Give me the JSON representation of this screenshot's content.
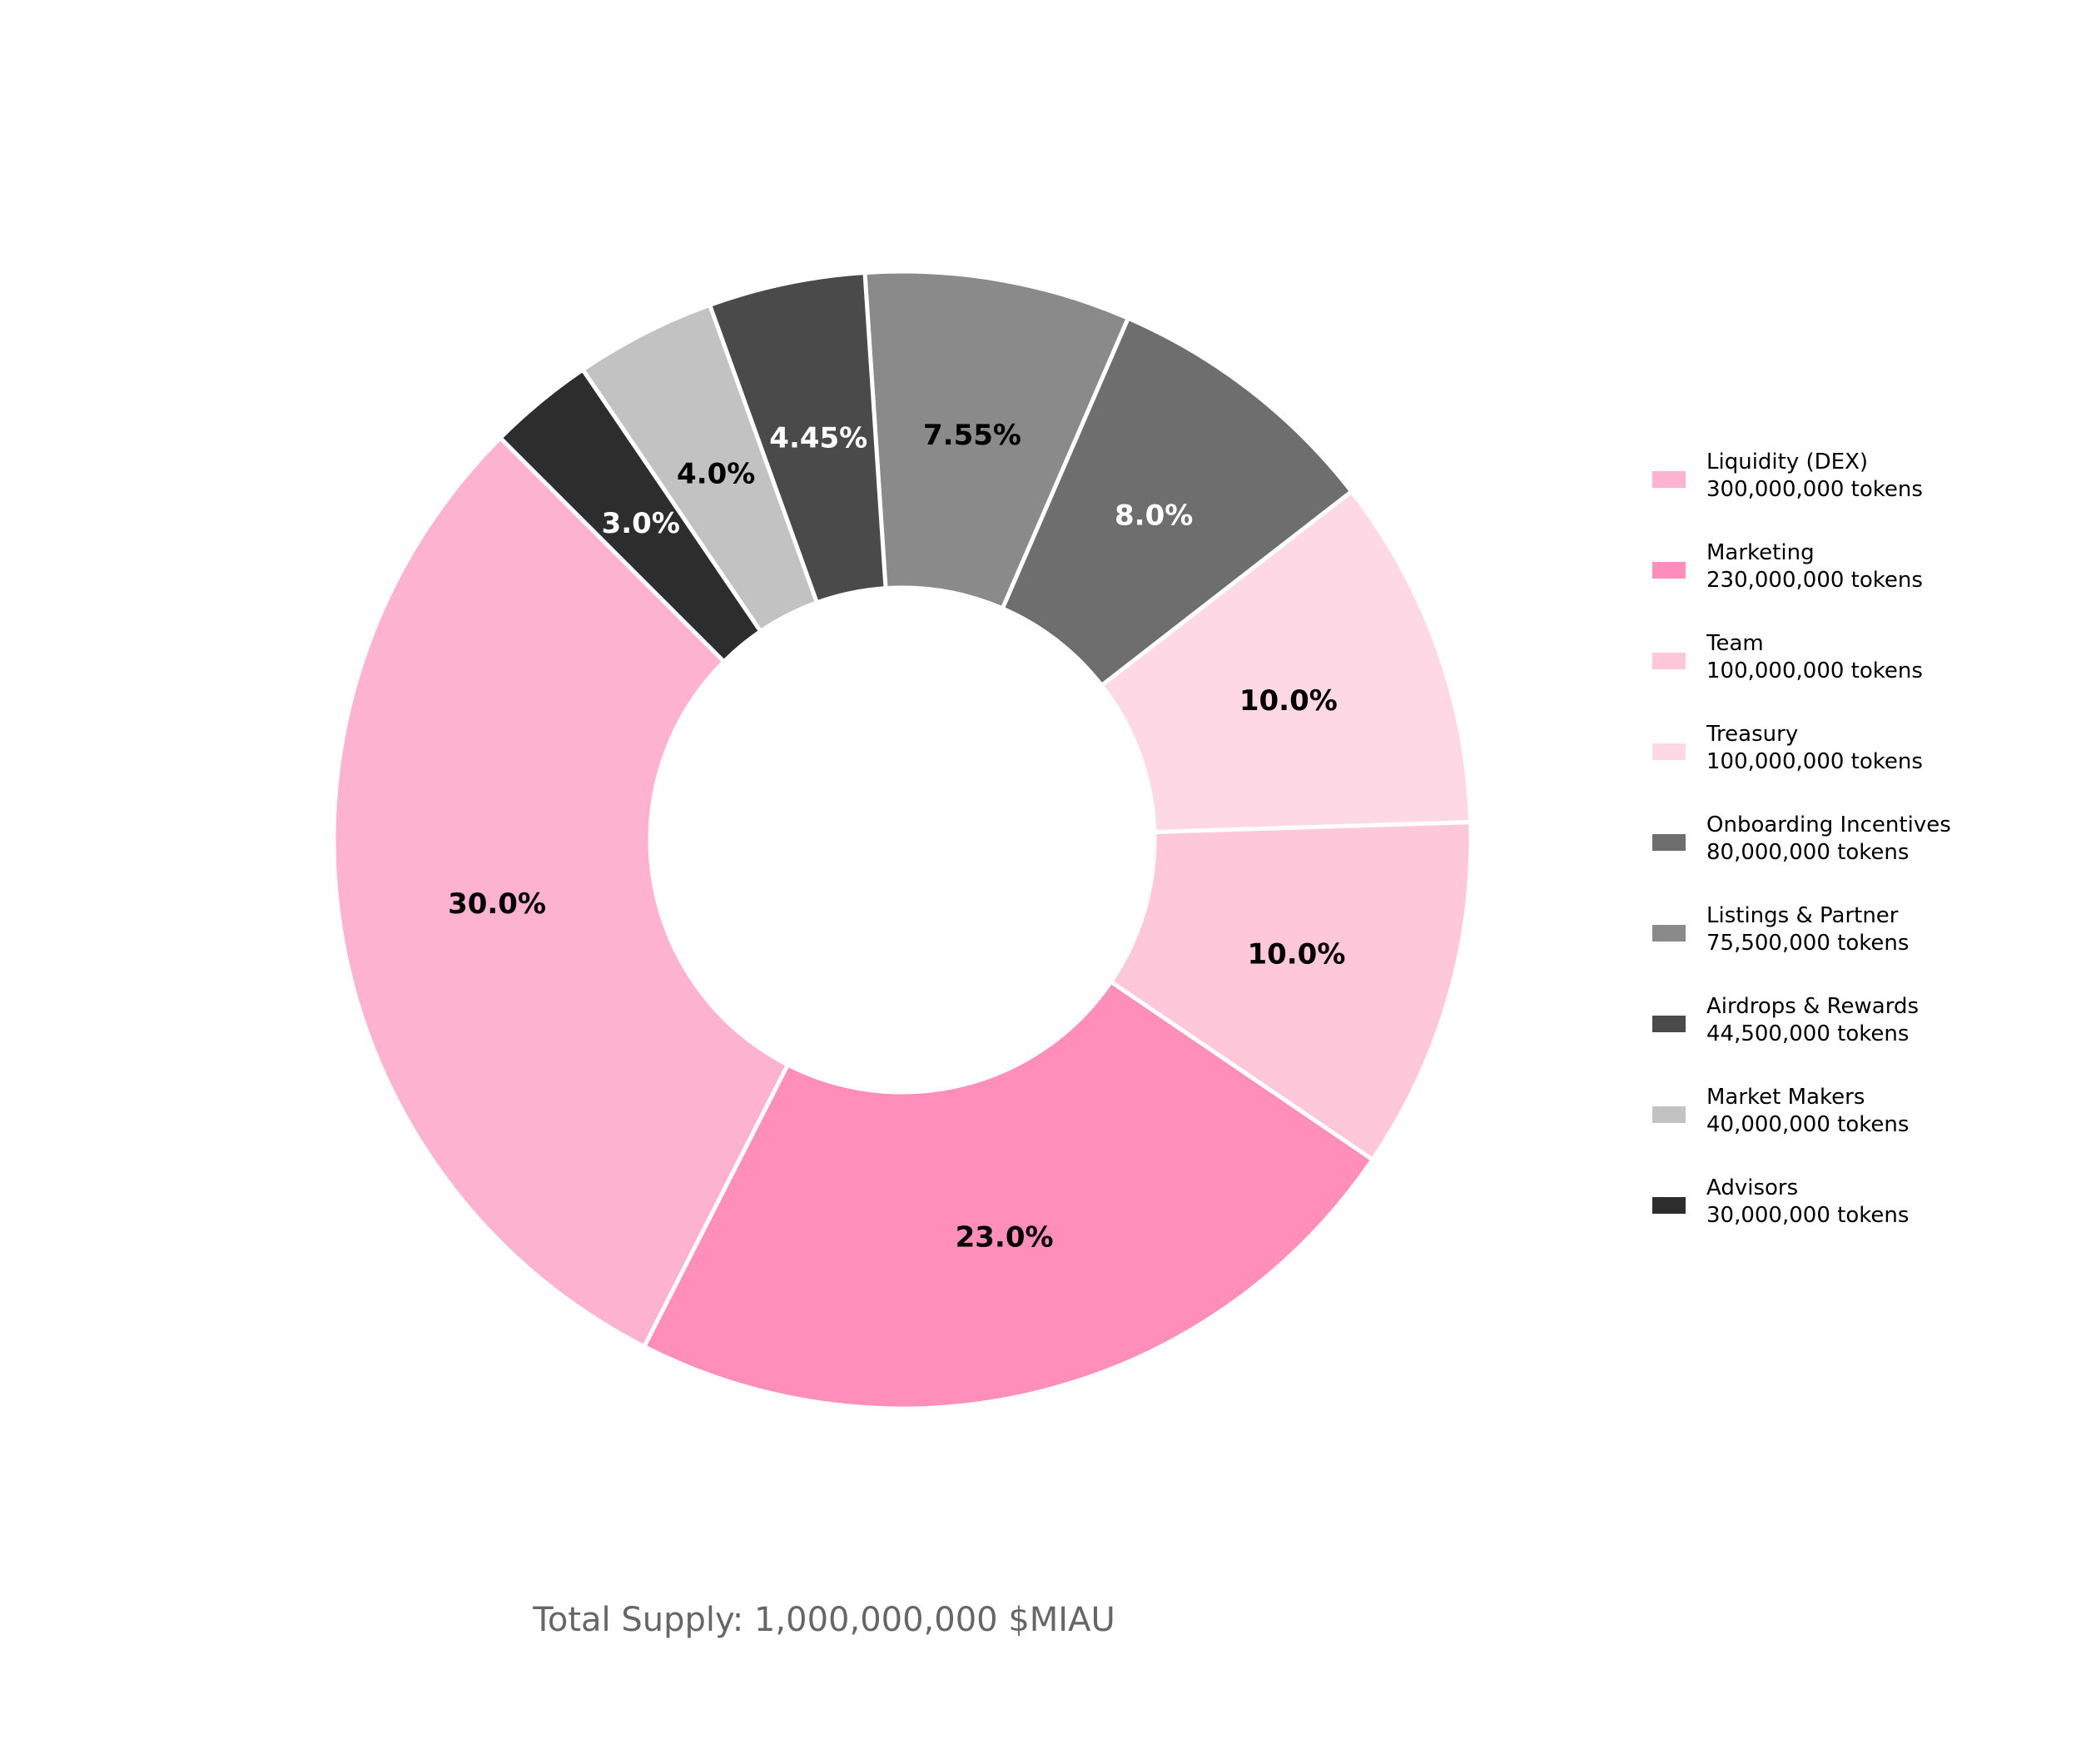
{
  "chart_data": {
    "type": "pie",
    "subtype": "donut",
    "start_angle_deg": 135,
    "direction": "counterclockwise",
    "slices": [
      {
        "label": "Liquidity (DEX)",
        "value": 30.0,
        "pct_text": "30.0%",
        "tokens_text": "300,000,000 tokens",
        "color": "#fdb2d0",
        "label_color": "#000000"
      },
      {
        "label": "Marketing",
        "value": 23.0,
        "pct_text": "23.0%",
        "tokens_text": "230,000,000 tokens",
        "color": "#ff8fba",
        "label_color": "#000000"
      },
      {
        "label": "Team",
        "value": 10.0,
        "pct_text": "10.0%",
        "tokens_text": "100,000,000 tokens",
        "color": "#ffc7da",
        "label_color": "#000000"
      },
      {
        "label": "Treasury",
        "value": 10.0,
        "pct_text": "10.0%",
        "tokens_text": "100,000,000 tokens",
        "color": "#ffd8e5",
        "label_color": "#000000"
      },
      {
        "label": "Onboarding Incentives",
        "value": 8.0,
        "pct_text": "8.0%",
        "tokens_text": "80,000,000 tokens",
        "color": "#6e6e6e",
        "label_color": "#ffffff"
      },
      {
        "label": "Listings & Partner",
        "value": 7.55,
        "pct_text": "7.55%",
        "tokens_text": "75,500,000 tokens",
        "color": "#8a8a8a",
        "label_color": "#000000"
      },
      {
        "label": "Airdrops & Rewards",
        "value": 4.45,
        "pct_text": "4.45%",
        "tokens_text": "44,500,000 tokens",
        "color": "#4a4a4a",
        "label_color": "#ffffff"
      },
      {
        "label": "Market Makers",
        "value": 4.0,
        "pct_text": "4.0%",
        "tokens_text": "40,000,000 tokens",
        "color": "#c2c2c2",
        "label_color": "#000000"
      },
      {
        "label": "Advisors",
        "value": 3.0,
        "pct_text": "3.0%",
        "tokens_text": "30,000,000 tokens",
        "color": "#2d2d2d",
        "label_color": "#ffffff"
      }
    ],
    "legend_position": "right",
    "footer": "Total Supply: 1,000,000,000 $MIAU"
  }
}
